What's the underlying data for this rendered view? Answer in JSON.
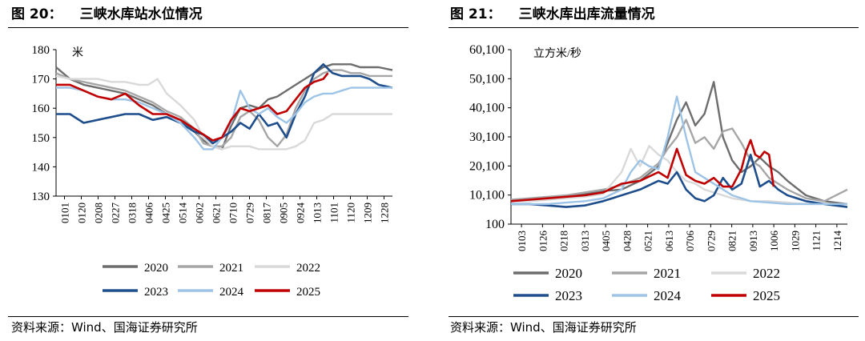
{
  "left": {
    "title_num": "图 20：",
    "title_text": "三峡水库站水位情况",
    "source": "资料来源：Wind、国海证券研究所"
  },
  "right": {
    "title_num": "图 21：",
    "title_text": "三峡水库出库流量情况",
    "source": "资料来源：Wind、国海证券研究所"
  },
  "colors": {
    "2020": "#6d6d6d",
    "2021": "#a6a6a6",
    "2022": "#d9d9d9",
    "2023": "#1f4e8c",
    "2024": "#9dc3e6",
    "2025": "#c00000"
  },
  "chart_data": [
    {
      "type": "line",
      "title": "三峡水库站水位情况",
      "ylabel": "米",
      "ylim": [
        130,
        180
      ],
      "yticks": [
        "130",
        "140",
        "150",
        "160",
        "170",
        "180"
      ],
      "xticks": [
        "0101",
        "0120",
        "0208",
        "0227",
        "0318",
        "0406",
        "0425",
        "0514",
        "0602",
        "0621",
        "0710",
        "0729",
        "0817",
        "0905",
        "0924",
        "1013",
        "1101",
        "1120",
        "1209",
        "1228"
      ],
      "xrange": [
        0,
        365
      ],
      "legend": [
        "2020",
        "2021",
        "2022",
        "2023",
        "2024",
        "2025"
      ],
      "series": [
        {
          "name": "2020",
          "x": [
            0,
            15,
            30,
            45,
            60,
            75,
            90,
            105,
            120,
            135,
            150,
            160,
            170,
            180,
            190,
            200,
            210,
            220,
            230,
            240,
            250,
            260,
            270,
            280,
            290,
            300,
            310,
            320,
            330,
            340,
            350,
            365
          ],
          "values": [
            174,
            170,
            168,
            167,
            166,
            165,
            163,
            161,
            158,
            156,
            152,
            149,
            147,
            146,
            154,
            160,
            161,
            160,
            163,
            164,
            166,
            168,
            170,
            172,
            174,
            175,
            175,
            175,
            174,
            174,
            174,
            173
          ]
        },
        {
          "name": "2021",
          "x": [
            0,
            15,
            30,
            45,
            60,
            75,
            90,
            105,
            120,
            135,
            150,
            160,
            170,
            180,
            190,
            200,
            210,
            220,
            230,
            240,
            250,
            260,
            270,
            280,
            290,
            300,
            310,
            320,
            330,
            340,
            350,
            365
          ],
          "values": [
            172,
            170,
            169,
            168,
            167,
            166,
            164,
            162,
            159,
            157,
            153,
            148,
            147,
            147,
            150,
            157,
            159,
            156,
            150,
            147,
            151,
            160,
            166,
            170,
            172,
            173,
            173,
            172,
            172,
            171,
            171,
            171
          ]
        },
        {
          "name": "2022",
          "x": [
            0,
            15,
            30,
            45,
            60,
            75,
            90,
            100,
            110,
            120,
            135,
            150,
            160,
            170,
            180,
            190,
            200,
            210,
            220,
            230,
            240,
            250,
            260,
            270,
            280,
            290,
            300,
            320,
            340,
            365
          ],
          "values": [
            171,
            170,
            170,
            170,
            169,
            169,
            168,
            168,
            170,
            165,
            161,
            156,
            150,
            147,
            146,
            147,
            147,
            147,
            146,
            146,
            146,
            146,
            147,
            149,
            155,
            156,
            158,
            158,
            158,
            158
          ]
        },
        {
          "name": "2023",
          "x": [
            0,
            15,
            30,
            45,
            60,
            75,
            90,
            105,
            120,
            135,
            150,
            160,
            170,
            180,
            190,
            200,
            210,
            220,
            230,
            240,
            250,
            260,
            270,
            280,
            290,
            300,
            310,
            320,
            330,
            340,
            350,
            365
          ],
          "values": [
            158,
            158,
            155,
            156,
            157,
            158,
            158,
            156,
            157,
            155,
            152,
            151,
            148,
            150,
            152,
            155,
            153,
            158,
            154,
            155,
            150,
            158,
            164,
            172,
            175,
            172,
            171,
            171,
            171,
            170,
            168,
            167
          ]
        },
        {
          "name": "2024",
          "x": [
            0,
            15,
            30,
            45,
            60,
            75,
            90,
            105,
            120,
            135,
            150,
            160,
            170,
            180,
            190,
            200,
            210,
            220,
            230,
            240,
            250,
            260,
            270,
            280,
            290,
            300,
            310,
            320,
            330,
            340,
            350,
            365
          ],
          "values": [
            167,
            167,
            166,
            164,
            163,
            163,
            162,
            160,
            158,
            155,
            150,
            146,
            146,
            150,
            155,
            166,
            160,
            158,
            160,
            157,
            155,
            158,
            162,
            164,
            165,
            165,
            166,
            167,
            167,
            167,
            167,
            167
          ]
        },
        {
          "name": "2025",
          "x": [
            0,
            15,
            30,
            45,
            60,
            75,
            90,
            105,
            120,
            135,
            150,
            160,
            170,
            180,
            190,
            200,
            210,
            220,
            230,
            240,
            250,
            260,
            270,
            280,
            290,
            295
          ],
          "values": [
            168,
            168,
            166,
            164,
            163,
            165,
            161,
            158,
            158,
            156,
            153,
            151,
            149,
            150,
            156,
            160,
            159,
            160,
            161,
            158,
            159,
            163,
            167,
            169,
            170,
            172
          ]
        }
      ]
    },
    {
      "type": "line",
      "title": "三峡水库出库流量情况",
      "ylabel": "立方米/秒",
      "ylim": [
        100,
        60100
      ],
      "yticks": [
        "100",
        "10,100",
        "20,100",
        "30,100",
        "40,100",
        "50,100",
        "60,100"
      ],
      "xticks": [
        "0103",
        "0126",
        "0218",
        "0313",
        "0405",
        "0428",
        "0521",
        "0613",
        "0706",
        "0729",
        "0821",
        "0913",
        "1006",
        "1029",
        "1121",
        "1214"
      ],
      "xrange": [
        0,
        365
      ],
      "legend": [
        "2020",
        "2021",
        "2022",
        "2023",
        "2024",
        "2025"
      ],
      "series": [
        {
          "name": "2020",
          "x": [
            0,
            20,
            40,
            60,
            80,
            100,
            120,
            140,
            160,
            170,
            180,
            190,
            200,
            210,
            220,
            230,
            240,
            250,
            260,
            270,
            280,
            290,
            300,
            320,
            340,
            365
          ],
          "values": [
            8000,
            8500,
            9000,
            9500,
            10500,
            11500,
            12000,
            15000,
            20000,
            28000,
            36000,
            42000,
            34000,
            38000,
            49000,
            30000,
            22000,
            18000,
            20000,
            23000,
            20000,
            18000,
            15000,
            10000,
            8000,
            7000
          ]
        },
        {
          "name": "2021",
          "x": [
            0,
            20,
            40,
            60,
            80,
            100,
            120,
            140,
            160,
            170,
            180,
            190,
            200,
            210,
            220,
            230,
            240,
            250,
            260,
            270,
            280,
            290,
            300,
            320,
            340,
            365
          ],
          "values": [
            8500,
            9000,
            9500,
            10000,
            11000,
            12000,
            13500,
            16000,
            21000,
            26000,
            30000,
            36000,
            28000,
            30000,
            26000,
            32000,
            33000,
            28000,
            22000,
            20000,
            16000,
            14000,
            12000,
            9000,
            8000,
            12000
          ]
        },
        {
          "name": "2022",
          "x": [
            0,
            20,
            40,
            60,
            80,
            100,
            120,
            130,
            140,
            150,
            160,
            170,
            180,
            190,
            200,
            210,
            220,
            240,
            260,
            280,
            300,
            320,
            340,
            365
          ],
          "values": [
            8000,
            8000,
            8500,
            9000,
            9500,
            10500,
            18000,
            26000,
            20000,
            27000,
            24000,
            22000,
            18000,
            15000,
            14000,
            12000,
            11000,
            9000,
            8000,
            8000,
            7500,
            7000,
            7000,
            7000
          ]
        },
        {
          "name": "2023",
          "x": [
            0,
            20,
            40,
            60,
            80,
            100,
            120,
            140,
            160,
            170,
            180,
            190,
            200,
            210,
            220,
            230,
            240,
            250,
            260,
            270,
            280,
            290,
            300,
            320,
            340,
            365
          ],
          "values": [
            7000,
            7000,
            6500,
            6000,
            6500,
            8000,
            10000,
            12000,
            15000,
            14000,
            18000,
            12000,
            9000,
            8000,
            10000,
            16000,
            12000,
            14000,
            24000,
            13000,
            15000,
            12000,
            10000,
            8000,
            7000,
            6000
          ]
        },
        {
          "name": "2024",
          "x": [
            0,
            20,
            40,
            60,
            80,
            100,
            120,
            130,
            140,
            150,
            160,
            170,
            180,
            190,
            200,
            210,
            220,
            240,
            260,
            280,
            300,
            320,
            340,
            365
          ],
          "values": [
            7000,
            7000,
            7000,
            7500,
            8000,
            9000,
            12000,
            18000,
            22000,
            20000,
            19000,
            30000,
            44000,
            30000,
            18000,
            16000,
            14000,
            10000,
            8000,
            7500,
            7000,
            7000,
            7000,
            7000
          ]
        },
        {
          "name": "2025",
          "x": [
            0,
            20,
            40,
            60,
            80,
            100,
            120,
            140,
            160,
            170,
            180,
            190,
            200,
            210,
            220,
            230,
            240,
            250,
            255,
            260,
            265,
            270,
            275,
            280,
            285
          ],
          "values": [
            8000,
            8500,
            9000,
            9500,
            10000,
            11000,
            14000,
            15000,
            18000,
            16000,
            26000,
            17000,
            15000,
            14000,
            16000,
            13000,
            13000,
            19000,
            25000,
            29000,
            24000,
            23000,
            25000,
            24000,
            13000
          ]
        }
      ]
    }
  ]
}
